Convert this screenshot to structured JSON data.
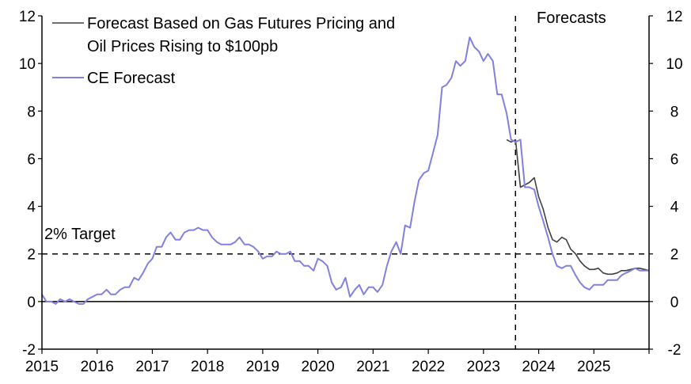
{
  "chart_data": {
    "type": "line",
    "title": "",
    "xlabel": "",
    "ylabel": "",
    "xlim": [
      2015.0,
      2026.0
    ],
    "ylim": [
      -2,
      12
    ],
    "x_ticks": [
      "2015",
      "2016",
      "2017",
      "2018",
      "2019",
      "2020",
      "2021",
      "2022",
      "2023",
      "2024",
      "2025"
    ],
    "y_ticks_left": [
      "-2",
      "0",
      "2",
      "4",
      "6",
      "8",
      "10",
      "12"
    ],
    "y_ticks_right": [
      "-2",
      "0",
      "2",
      "4",
      "6",
      "8",
      "10",
      "12"
    ],
    "colors": {
      "ce": "#8080e0",
      "gas": "#404040",
      "axis": "#000000"
    },
    "legend": [
      {
        "name": "Forecast Based on Gas Futures Pricing and",
        "name_line2": "Oil Prices Rising to $100pb",
        "color": "#404040"
      },
      {
        "name": "CE Forecast",
        "color": "#8080e0"
      }
    ],
    "annotations": {
      "target_label": "2% Target",
      "target_value": 2,
      "forecast_label": "Forecasts",
      "forecast_start": 2023.58
    },
    "series": [
      {
        "name": "Forecast Based on Gas Futures Pricing and Oil Prices Rising to $100pb",
        "color": "#404040",
        "x": [
          2023.42,
          2023.5,
          2023.58,
          2023.67,
          2023.75,
          2023.83,
          2023.92,
          2024.0,
          2024.08,
          2024.17,
          2024.25,
          2024.33,
          2024.42,
          2024.5,
          2024.58,
          2024.67,
          2024.75,
          2024.83,
          2024.92,
          2025.0,
          2025.08,
          2025.17,
          2025.25,
          2025.33,
          2025.42,
          2025.5,
          2025.58,
          2025.67,
          2025.75,
          2025.83,
          2025.92,
          2026.0
        ],
        "y": [
          6.8,
          6.7,
          6.8,
          4.8,
          4.9,
          5.0,
          5.2,
          4.4,
          3.9,
          3.1,
          2.6,
          2.5,
          2.7,
          2.6,
          2.2,
          2.0,
          1.7,
          1.5,
          1.35,
          1.35,
          1.4,
          1.2,
          1.15,
          1.15,
          1.2,
          1.3,
          1.3,
          1.35,
          1.4,
          1.4,
          1.35,
          1.3
        ]
      },
      {
        "name": "CE Forecast",
        "color": "#8080e0",
        "x": [
          2015.0,
          2015.08,
          2015.17,
          2015.25,
          2015.33,
          2015.42,
          2015.5,
          2015.58,
          2015.67,
          2015.75,
          2015.83,
          2015.92,
          2016.0,
          2016.08,
          2016.17,
          2016.25,
          2016.33,
          2016.42,
          2016.5,
          2016.58,
          2016.67,
          2016.75,
          2016.83,
          2016.92,
          2017.0,
          2017.08,
          2017.17,
          2017.25,
          2017.33,
          2017.42,
          2017.5,
          2017.58,
          2017.67,
          2017.75,
          2017.83,
          2017.92,
          2018.0,
          2018.08,
          2018.17,
          2018.25,
          2018.33,
          2018.42,
          2018.5,
          2018.58,
          2018.67,
          2018.75,
          2018.83,
          2018.92,
          2019.0,
          2019.08,
          2019.17,
          2019.25,
          2019.33,
          2019.42,
          2019.5,
          2019.58,
          2019.67,
          2019.75,
          2019.83,
          2019.92,
          2020.0,
          2020.08,
          2020.17,
          2020.25,
          2020.33,
          2020.42,
          2020.5,
          2020.58,
          2020.67,
          2020.75,
          2020.83,
          2020.92,
          2021.0,
          2021.08,
          2021.17,
          2021.25,
          2021.33,
          2021.42,
          2021.5,
          2021.58,
          2021.67,
          2021.75,
          2021.83,
          2021.92,
          2022.0,
          2022.08,
          2022.17,
          2022.25,
          2022.33,
          2022.42,
          2022.5,
          2022.58,
          2022.67,
          2022.75,
          2022.83,
          2022.92,
          2023.0,
          2023.08,
          2023.17,
          2023.25,
          2023.33,
          2023.42,
          2023.5,
          2023.58,
          2023.67,
          2023.75,
          2023.83,
          2023.92,
          2024.0,
          2024.08,
          2024.17,
          2024.25,
          2024.33,
          2024.42,
          2024.5,
          2024.58,
          2024.67,
          2024.75,
          2024.83,
          2024.92,
          2025.0,
          2025.08,
          2025.17,
          2025.25,
          2025.33,
          2025.42,
          2025.5,
          2025.58,
          2025.67,
          2025.75,
          2025.83,
          2025.92,
          2026.0
        ],
        "y": [
          0.3,
          0.0,
          0.0,
          -0.1,
          0.1,
          0.0,
          0.1,
          0.0,
          -0.1,
          -0.1,
          0.1,
          0.2,
          0.3,
          0.3,
          0.5,
          0.3,
          0.3,
          0.5,
          0.6,
          0.6,
          1.0,
          0.9,
          1.2,
          1.6,
          1.8,
          2.3,
          2.3,
          2.7,
          2.9,
          2.6,
          2.6,
          2.9,
          3.0,
          3.0,
          3.1,
          3.0,
          3.0,
          2.7,
          2.5,
          2.4,
          2.4,
          2.4,
          2.5,
          2.7,
          2.4,
          2.4,
          2.3,
          2.1,
          1.8,
          1.9,
          1.9,
          2.1,
          2.0,
          2.0,
          2.1,
          1.7,
          1.7,
          1.5,
          1.5,
          1.3,
          1.8,
          1.7,
          1.5,
          0.8,
          0.5,
          0.6,
          1.0,
          0.2,
          0.5,
          0.7,
          0.3,
          0.6,
          0.6,
          0.4,
          0.7,
          1.5,
          2.1,
          2.5,
          2.0,
          3.2,
          3.1,
          4.2,
          5.1,
          5.4,
          5.5,
          6.2,
          7.0,
          9.0,
          9.1,
          9.4,
          10.1,
          9.9,
          10.1,
          11.1,
          10.7,
          10.5,
          10.1,
          10.4,
          10.1,
          8.7,
          8.7,
          7.9,
          6.8,
          6.7,
          6.8,
          4.8,
          4.8,
          4.7,
          4.0,
          3.4,
          2.7,
          2.0,
          1.5,
          1.4,
          1.5,
          1.5,
          1.1,
          0.8,
          0.6,
          0.5,
          0.7,
          0.7,
          0.7,
          0.9,
          0.9,
          0.9,
          1.1,
          1.2,
          1.3,
          1.4,
          1.3,
          1.3,
          1.3
        ]
      }
    ]
  }
}
